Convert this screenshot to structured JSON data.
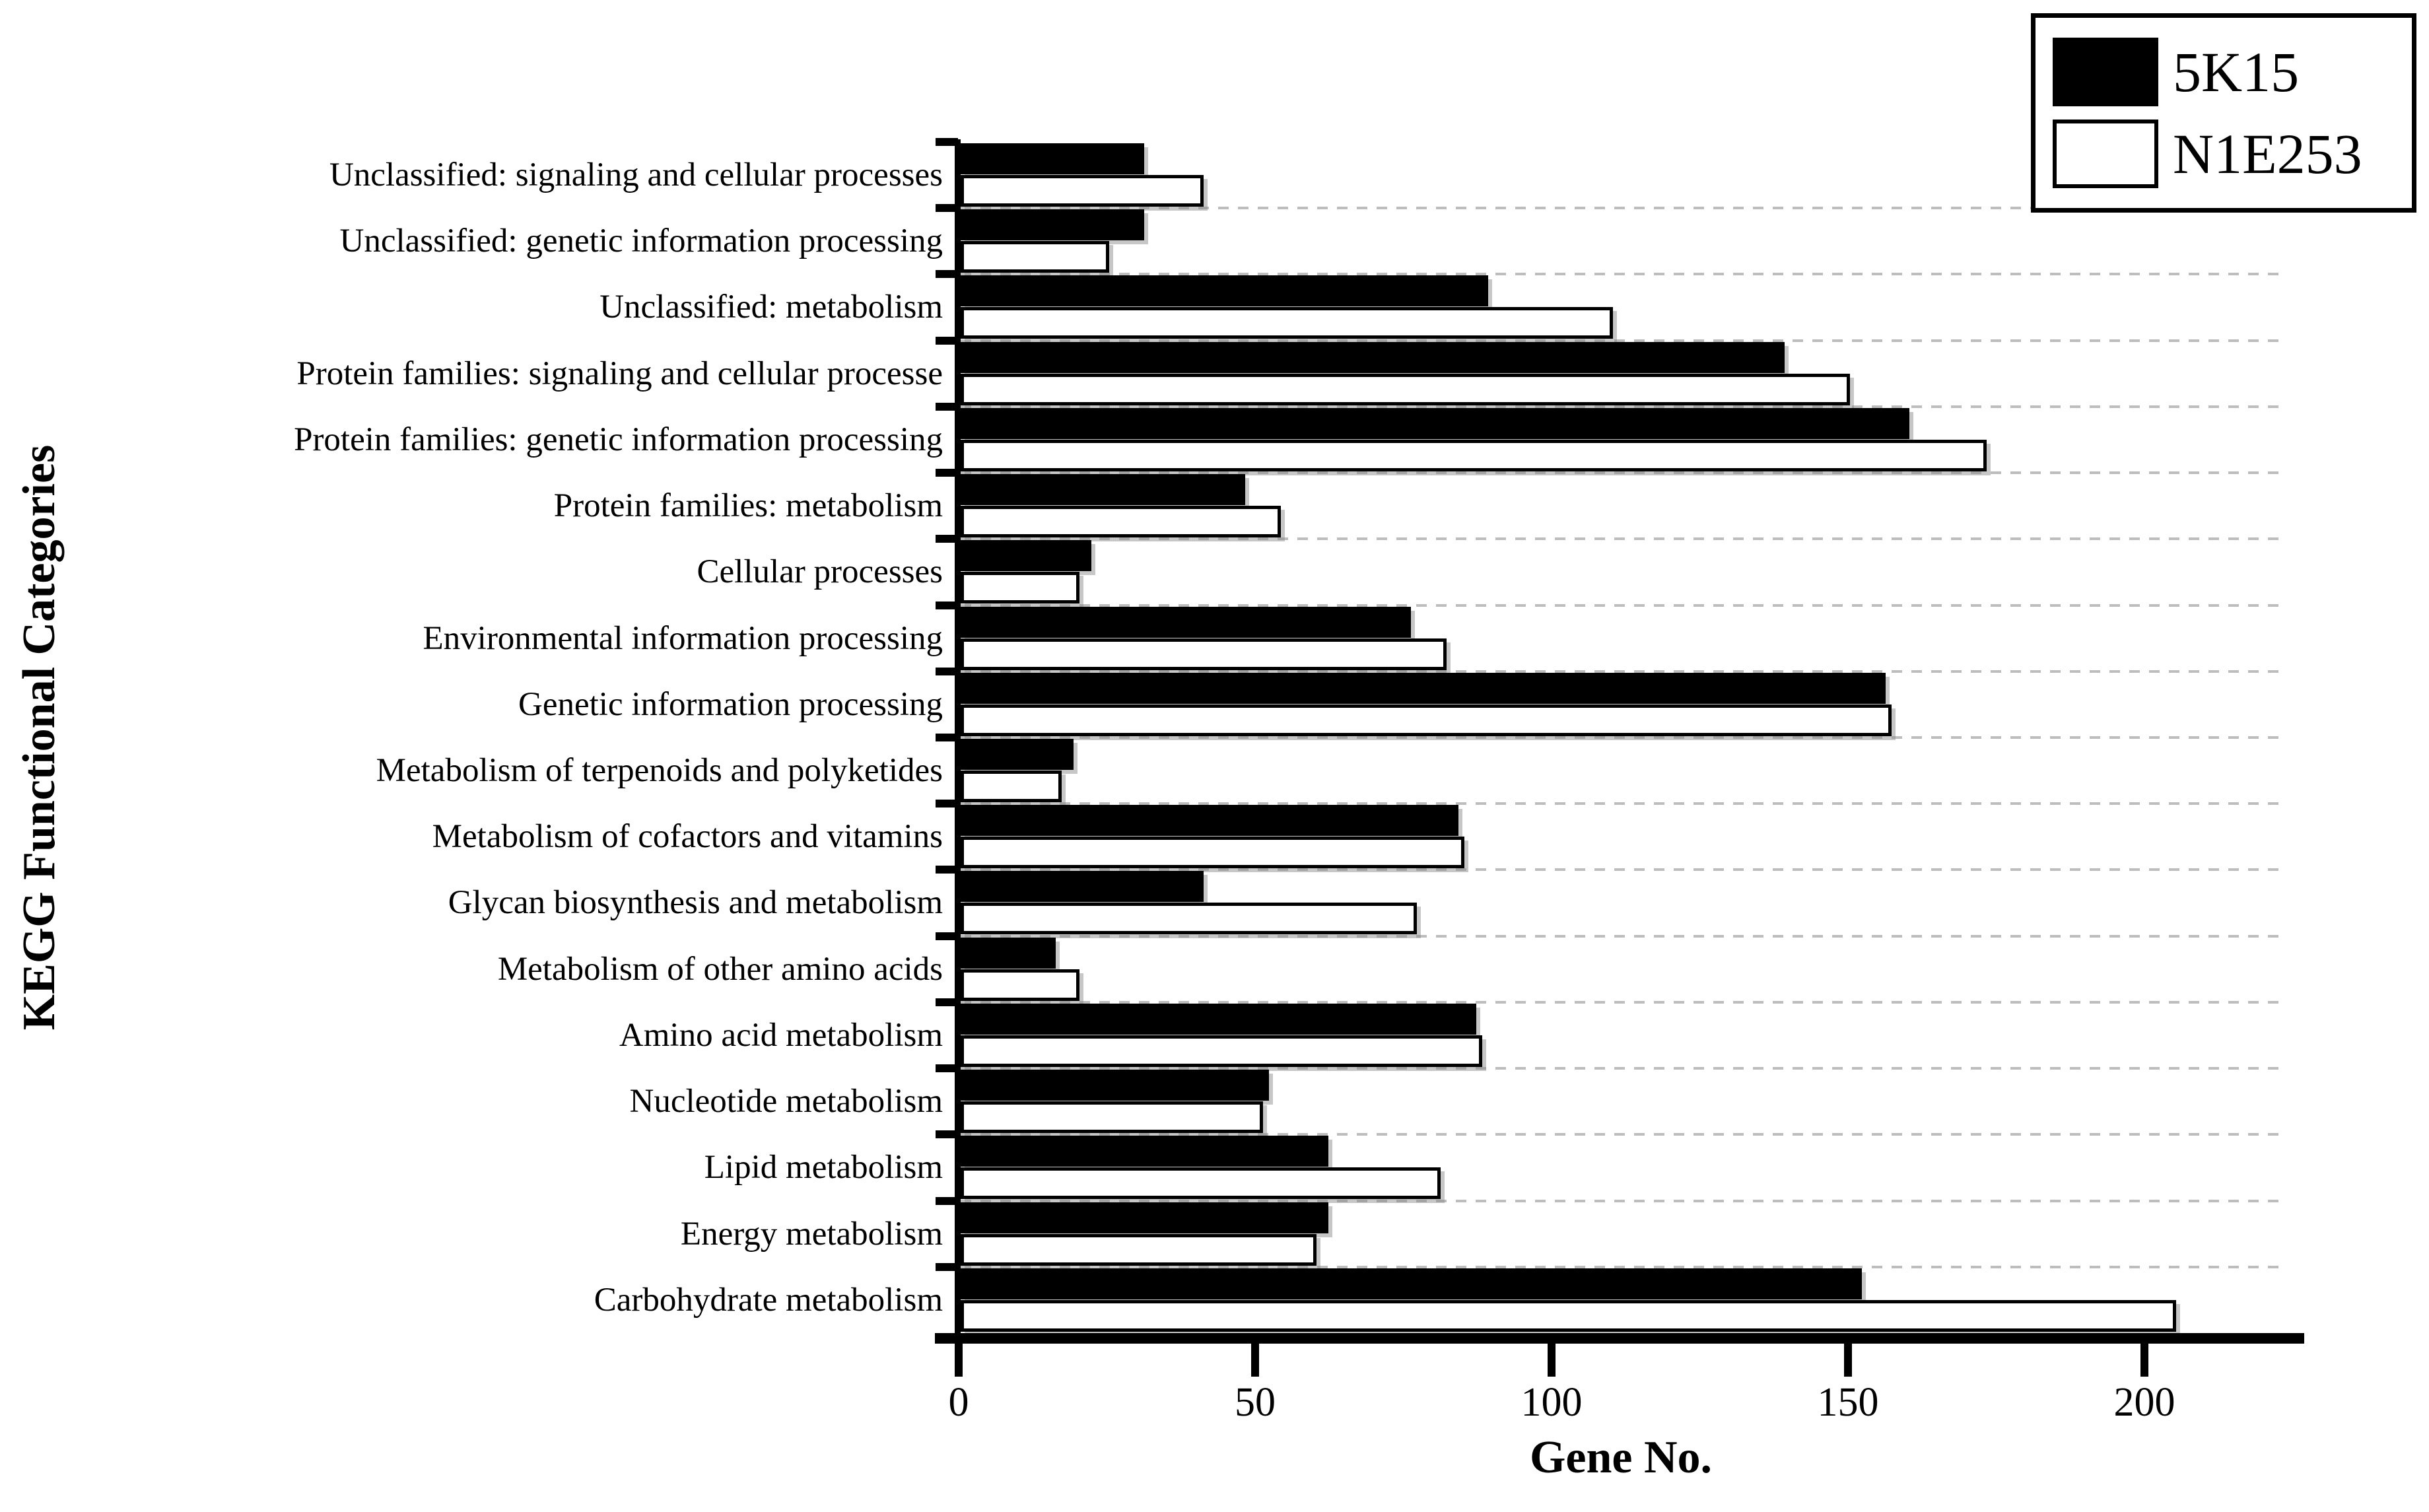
{
  "axes": {
    "x_label": "Gene No.",
    "y_label": "KEGG Functional Categories",
    "x_ticks": [
      0,
      50,
      100,
      150,
      200
    ],
    "x_max": 223,
    "grid": "horizontal-dashed"
  },
  "colors": {
    "series_5k15": "#000000",
    "series_n1e253": "#ffffff",
    "bar_border": "#000000",
    "gridline": "#bdbdbd",
    "background": "#ffffff"
  },
  "chart_data": {
    "type": "bar",
    "orientation": "horizontal",
    "title": "",
    "xlabel": "Gene No.",
    "ylabel": "KEGG Functional Categories",
    "xlim": [
      0,
      223
    ],
    "legend_position": "top-right",
    "categories_top_to_bottom": [
      "Unclassified: signaling and cellular processes",
      "Unclassified: genetic information processing",
      "Unclassified: metabolism",
      "Protein families: signaling and cellular processe",
      "Protein families: genetic information processing",
      "Protein families: metabolism",
      "Cellular processes",
      "Environmental information processing",
      "Genetic information processing",
      "Metabolism of terpenoids and polyketides",
      "Metabolism of cofactors and vitamins",
      "Glycan biosynthesis and metabolism",
      "Metabolism of other amino acids",
      "Amino acid metabolism",
      "Nucleotide metabolism",
      "Lipid metabolism",
      "Energy metabolism",
      "Carbohydrate metabolism"
    ],
    "series": [
      {
        "name": "5K15",
        "fill": "#000000",
        "values": [
          31,
          31,
          89,
          139,
          160,
          48,
          22,
          76,
          156,
          19,
          84,
          41,
          16,
          87,
          52,
          62,
          62,
          152
        ]
      },
      {
        "name": "N1E253",
        "fill": "#ffffff",
        "values": [
          41,
          25,
          110,
          150,
          173,
          54,
          20,
          82,
          157,
          17,
          85,
          77,
          20,
          88,
          51,
          81,
          60,
          205
        ]
      }
    ]
  }
}
